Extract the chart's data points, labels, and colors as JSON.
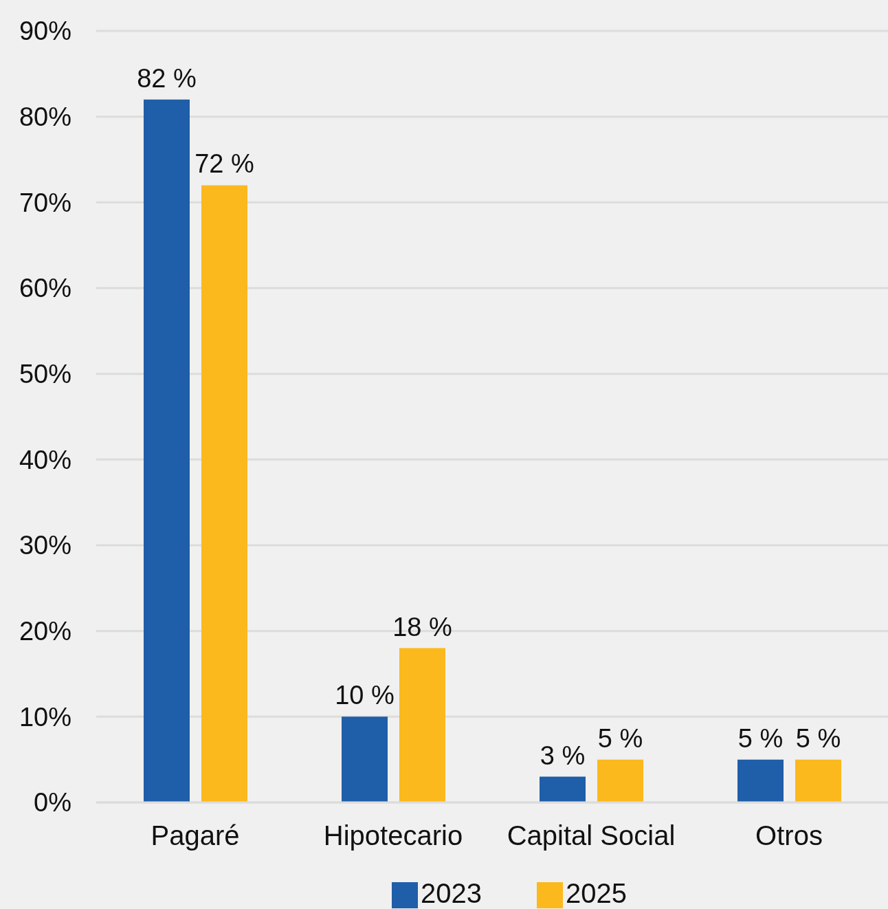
{
  "chart_data": {
    "type": "bar",
    "categories": [
      "Pagaré",
      "Hipotecario",
      "Capital Social",
      "Otros"
    ],
    "series": [
      {
        "name": "2023",
        "color": "#1f5ea8",
        "values": [
          82,
          10,
          3,
          5
        ],
        "value_labels": [
          "82 %",
          "10 %",
          "3 %",
          "5 %"
        ]
      },
      {
        "name": "2025",
        "color": "#fbb91d",
        "values": [
          72,
          18,
          5,
          5
        ],
        "value_labels": [
          "72 %",
          "18 %",
          "5 %",
          "5 %"
        ]
      }
    ],
    "ylim": [
      0,
      90
    ],
    "yticks": [
      {
        "value": 0,
        "label": "0%"
      },
      {
        "value": 10,
        "label": "10%"
      },
      {
        "value": 20,
        "label": "20%"
      },
      {
        "value": 30,
        "label": "30%"
      },
      {
        "value": 40,
        "label": "40%"
      },
      {
        "value": 50,
        "label": "50%"
      },
      {
        "value": 60,
        "label": "60%"
      },
      {
        "value": 70,
        "label": "70%"
      },
      {
        "value": 80,
        "label": "80%"
      },
      {
        "value": 90,
        "label": "90%"
      }
    ],
    "grid": "y",
    "legend": "bottom"
  }
}
